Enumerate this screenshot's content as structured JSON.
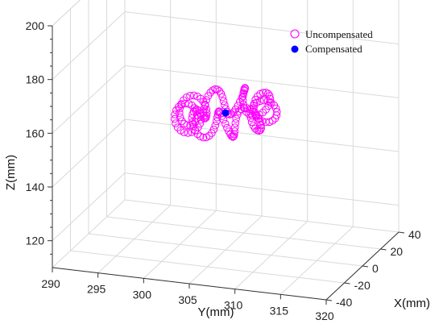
{
  "chart_data": {
    "type": "scatter",
    "projection": "3d",
    "title": "",
    "xlabel": "X(mm)",
    "ylabel": "Y(mm)",
    "zlabel": "Z(mm)",
    "xlim": [
      -40,
      40
    ],
    "ylim": [
      290,
      320
    ],
    "zlim": [
      110,
      200
    ],
    "x_ticks": [
      -40,
      -20,
      0,
      20,
      40
    ],
    "y_ticks": [
      290,
      295,
      300,
      305,
      310,
      315,
      320
    ],
    "z_ticks": [
      120,
      140,
      160,
      180,
      200
    ],
    "grid": true,
    "legend_position": "top-right",
    "series": [
      {
        "name": "Uncompensated",
        "marker": "open-circle",
        "color": "#ff00ff",
        "ring": {
          "center": {
            "x": 0,
            "y": 305,
            "z": 161
          },
          "radius": 14,
          "tube_radius": 4,
          "count": 180
        }
      },
      {
        "name": "Compensated",
        "marker": "filled-circle",
        "color": "#0000ff",
        "points": [
          {
            "x": 0,
            "y": 305,
            "z": 161
          }
        ]
      }
    ]
  }
}
